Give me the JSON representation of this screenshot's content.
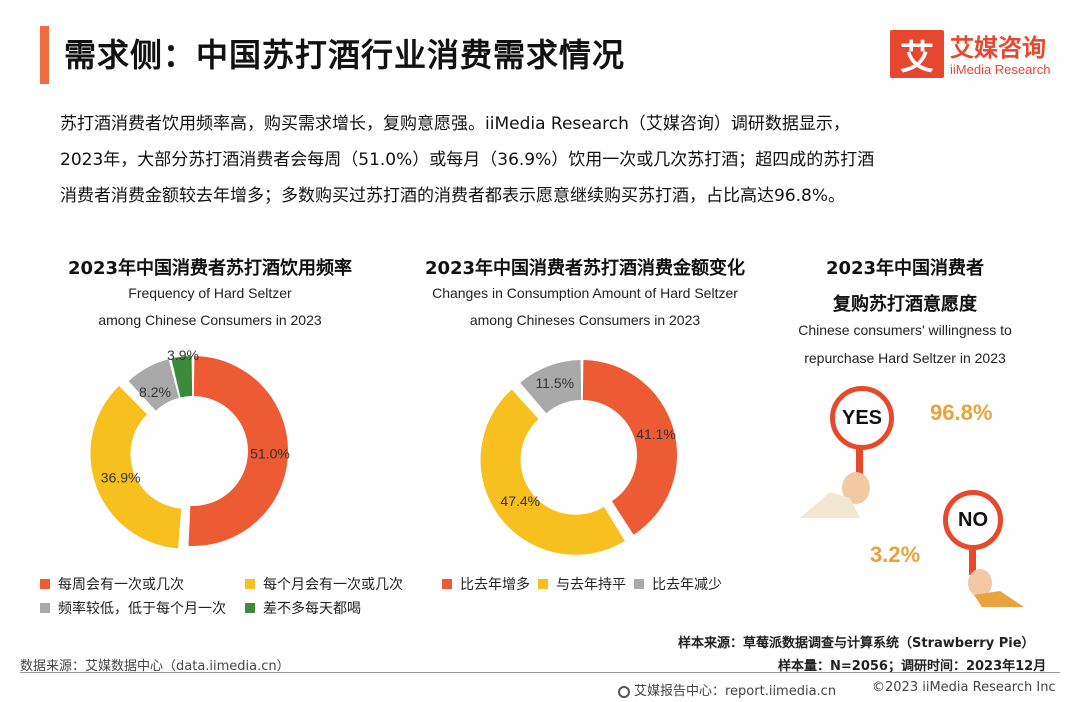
{
  "header": {
    "title": "需求侧：中国苏打酒行业消费需求情况",
    "logo_mark": "艾",
    "logo_cn": "艾媒咨询",
    "logo_en": "iiMedia Research"
  },
  "intro": [
    "苏打酒消费者饮用频率高，购买需求增长，复购意愿强。iiMedia Research（艾媒咨询）调研数据显示，",
    "2023年，大部分苏打酒消费者会每周（51.0%）或每月（36.9%）饮用一次或几次苏打酒；超四成的苏打酒",
    "消费者消费金额较去年增多；多数购买过苏打酒的消费者都表示愿意继续购买苏打酒，占比高达96.8%。"
  ],
  "chart_data": [
    {
      "type": "pie",
      "title": "2023年中国消费者苏打酒饮用频率",
      "subtitle": [
        "Frequency of Hard Seltzer",
        "among Chinese Consumers in 2023"
      ],
      "categories": [
        "每周会有一次或几次",
        "每个月会有一次或几次",
        "频率较低，低于每个月一次",
        "差不多每天都喝"
      ],
      "values": [
        51.0,
        36.9,
        8.2,
        3.9
      ],
      "labels": [
        "51.0%",
        "36.9%",
        "8.2%",
        "3.9%"
      ],
      "colors": [
        "#ec5b34",
        "#f7c01e",
        "#a9a9a9",
        "#3e8a3c"
      ],
      "legend_position": "bottom"
    },
    {
      "type": "pie",
      "title": "2023年中国消费者苏打酒消费金额变化",
      "subtitle": [
        "Changes in Consumption Amount of Hard Seltzer",
        "among Chineses Consumers in 2023"
      ],
      "categories": [
        "比去年增多",
        "与去年持平",
        "比去年减少"
      ],
      "values": [
        41.1,
        47.4,
        11.5
      ],
      "labels": [
        "41.1%",
        "47.4%",
        "11.5%"
      ],
      "colors": [
        "#ec5b34",
        "#f7c01e",
        "#a9a9a9"
      ],
      "legend_position": "bottom"
    },
    {
      "type": "table",
      "title": [
        "2023年中国消费者",
        "复购苏打酒意愿度"
      ],
      "subtitle": [
        "Chinese consumers' willingness to",
        "repurchase Hard Seltzer in 2023"
      ],
      "categories": [
        "YES",
        "NO"
      ],
      "values": [
        96.8,
        3.2
      ],
      "labels": [
        "96.8%",
        "3.2%"
      ]
    }
  ],
  "footer": {
    "data_source": "数据来源：艾媒数据中心（data.iimedia.cn）",
    "sample_source": "样本来源：草莓派数据调查与计算系统（Strawberry Pie）",
    "sample_size": "样本量：N=2056；调研时间：2023年12月",
    "report_center": "艾媒报告中心：report.iimedia.cn",
    "copyright": "©2023  iiMedia Research  Inc"
  }
}
